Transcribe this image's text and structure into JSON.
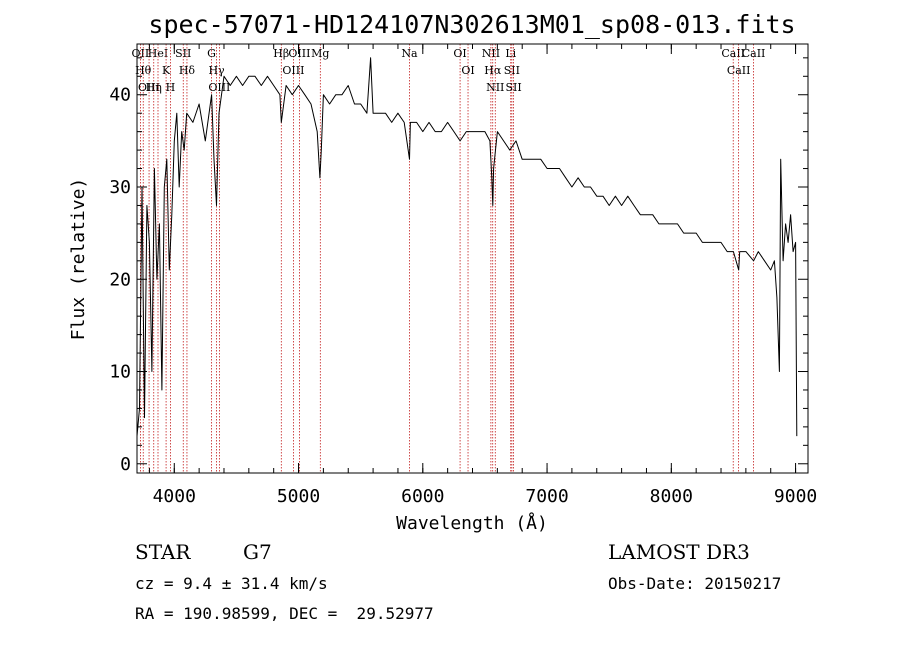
{
  "chart_data": {
    "type": "line",
    "title": "spec-57071-HD124107N302613M01_sp08-013.fits",
    "xlabel": "Wavelength (Å)",
    "ylabel": "Flux (relative)",
    "xlim": [
      3700,
      9100
    ],
    "ylim": [
      -1,
      45.5
    ],
    "xticks": [
      4000,
      5000,
      6000,
      7000,
      8000,
      9000
    ],
    "yticks": [
      0,
      10,
      20,
      30,
      40
    ],
    "series": [
      {
        "name": "flux",
        "x": [
          3700,
          3720,
          3740,
          3760,
          3780,
          3800,
          3820,
          3840,
          3860,
          3880,
          3900,
          3920,
          3940,
          3960,
          3980,
          4000,
          4020,
          4040,
          4060,
          4080,
          4100,
          4150,
          4200,
          4250,
          4300,
          4320,
          4340,
          4360,
          4400,
          4450,
          4500,
          4550,
          4600,
          4650,
          4700,
          4750,
          4800,
          4850,
          4861,
          4900,
          4950,
          5000,
          5050,
          5100,
          5150,
          5172,
          5183,
          5200,
          5250,
          5300,
          5350,
          5400,
          5450,
          5500,
          5550,
          5580,
          5600,
          5650,
          5700,
          5750,
          5800,
          5850,
          5893,
          5900,
          5950,
          6000,
          6050,
          6100,
          6150,
          6200,
          6250,
          6300,
          6350,
          6400,
          6450,
          6500,
          6540,
          6555,
          6563,
          6570,
          6600,
          6650,
          6700,
          6750,
          6800,
          6850,
          6900,
          6950,
          7000,
          7050,
          7100,
          7150,
          7200,
          7250,
          7300,
          7350,
          7400,
          7450,
          7500,
          7550,
          7600,
          7650,
          7700,
          7750,
          7800,
          7850,
          7900,
          7950,
          8000,
          8050,
          8100,
          8150,
          8200,
          8250,
          8300,
          8350,
          8400,
          8450,
          8500,
          8542,
          8550,
          8600,
          8662,
          8700,
          8750,
          8800,
          8830,
          8850,
          8870,
          8880,
          8900,
          8920,
          8940,
          8960,
          8980,
          9000,
          9010
        ],
        "y": [
          3,
          6,
          30,
          5,
          28,
          24,
          10,
          32,
          20,
          26,
          8,
          30,
          33,
          21,
          27,
          35,
          38,
          30,
          36,
          34,
          38,
          37,
          39,
          35,
          40,
          33,
          28,
          38,
          42,
          41,
          42,
          41,
          42,
          42,
          41,
          42,
          41,
          40,
          37,
          41,
          40,
          41,
          40,
          39,
          36,
          31,
          34,
          40,
          39,
          40,
          40,
          41,
          39,
          39,
          38,
          44,
          38,
          38,
          38,
          37,
          38,
          37,
          33,
          37,
          37,
          36,
          37,
          36,
          36,
          37,
          36,
          35,
          36,
          36,
          36,
          36,
          35,
          31,
          28,
          32,
          36,
          35,
          34,
          35,
          33,
          33,
          33,
          33,
          32,
          32,
          32,
          31,
          30,
          31,
          30,
          30,
          29,
          29,
          28,
          29,
          28,
          29,
          28,
          27,
          27,
          27,
          26,
          26,
          26,
          26,
          25,
          25,
          25,
          24,
          24,
          24,
          24,
          23,
          23,
          21,
          23,
          23,
          22,
          23,
          22,
          21,
          22,
          18,
          10,
          33,
          22,
          26,
          24,
          27,
          23,
          24,
          3
        ]
      }
    ],
    "lines": [
      {
        "wl": 3727,
        "label": "OII"
      },
      {
        "wl": 3750,
        "label": "Hθ"
      },
      {
        "wl": 3797,
        "label": "OIII"
      },
      {
        "wl": 3835,
        "label": "Hη"
      },
      {
        "wl": 3869,
        "label": "HeI"
      },
      {
        "wl": 3934,
        "label": "K"
      },
      {
        "wl": 3969,
        "label": "H"
      },
      {
        "wl": 4072,
        "label": "SII"
      },
      {
        "wl": 4102,
        "label": "Hδ"
      },
      {
        "wl": 4300,
        "label": "G"
      },
      {
        "wl": 4340,
        "label": "Hγ"
      },
      {
        "wl": 4363,
        "label": "OIII"
      },
      {
        "wl": 4861,
        "label": "Hβ"
      },
      {
        "wl": 4959,
        "label": "OIII"
      },
      {
        "wl": 5007,
        "label": "OIII"
      },
      {
        "wl": 5175,
        "label": "Mg"
      },
      {
        "wl": 5893,
        "label": "Na"
      },
      {
        "wl": 6300,
        "label": "OI"
      },
      {
        "wl": 6364,
        "label": "OI"
      },
      {
        "wl": 6548,
        "label": "NII"
      },
      {
        "wl": 6563,
        "label": "Hα"
      },
      {
        "wl": 6583,
        "label": "NII"
      },
      {
        "wl": 6708,
        "label": "Li"
      },
      {
        "wl": 6717,
        "label": "SII"
      },
      {
        "wl": 6731,
        "label": "SII"
      },
      {
        "wl": 8498,
        "label": "CaII"
      },
      {
        "wl": 8542,
        "label": "CaII"
      },
      {
        "wl": 8662,
        "label": "CaII"
      }
    ],
    "line_color": "#bb0000"
  },
  "info": {
    "object_class": "STAR",
    "subclass": "G7",
    "survey": "LAMOST DR3",
    "cz": "cz = 9.4 ± 31.4 km/s",
    "obs_date": "Obs-Date: 20150217",
    "coords": "RA = 190.98599, DEC =  29.52977"
  }
}
